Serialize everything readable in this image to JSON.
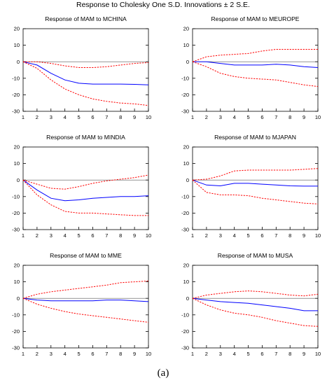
{
  "figure": {
    "title": "Response to Cholesky One S.D. Innovations ± 2 S.E.",
    "caption": "(a)",
    "colors": {
      "response": "#0000ff",
      "band": "#ff0000",
      "zero": "#555555"
    }
  },
  "chart_data": [
    {
      "type": "line",
      "title": "Response of MAM to MCHINA",
      "x": [
        1,
        2,
        3,
        4,
        5,
        6,
        7,
        8,
        9,
        10
      ],
      "xticks": [
        1,
        2,
        3,
        4,
        5,
        6,
        7,
        8,
        9,
        10
      ],
      "yticks": [
        20,
        10,
        0,
        -10,
        -20,
        -30
      ],
      "ylim": [
        -30,
        20
      ],
      "series": [
        {
          "role": "response",
          "values": [
            0,
            -2,
            -7,
            -11,
            -13,
            -13.5,
            -13.5,
            -13.5,
            -13.7,
            -14
          ]
        },
        {
          "role": "upper",
          "values": [
            0,
            0,
            -1,
            -2.5,
            -3.5,
            -3.5,
            -3,
            -2,
            -1,
            -0.5
          ]
        },
        {
          "role": "lower",
          "values": [
            0,
            -4,
            -11,
            -16.5,
            -20,
            -22.5,
            -24,
            -25,
            -25.5,
            -26.5
          ]
        }
      ]
    },
    {
      "type": "line",
      "title": "Response of MAM to MEUROPE",
      "x": [
        1,
        2,
        3,
        4,
        5,
        6,
        7,
        8,
        9,
        10
      ],
      "xticks": [
        1,
        2,
        3,
        4,
        5,
        6,
        7,
        8,
        9,
        10
      ],
      "yticks": [
        20,
        10,
        0,
        -10,
        -20,
        -30
      ],
      "ylim": [
        -30,
        20
      ],
      "series": [
        {
          "role": "response",
          "values": [
            0,
            0,
            -1,
            -2,
            -2,
            -2,
            -1.5,
            -2,
            -3,
            -3.5
          ]
        },
        {
          "role": "upper",
          "values": [
            0,
            3,
            4,
            4.5,
            5,
            6.5,
            7.5,
            7.5,
            7.5,
            7.5
          ]
        },
        {
          "role": "lower",
          "values": [
            0,
            -3,
            -7,
            -9,
            -10,
            -10.5,
            -11,
            -12.5,
            -14,
            -15
          ]
        }
      ]
    },
    {
      "type": "line",
      "title": "Response of MAM to MINDIA",
      "x": [
        1,
        2,
        3,
        4,
        5,
        6,
        7,
        8,
        9,
        10
      ],
      "xticks": [
        1,
        2,
        3,
        4,
        5,
        6,
        7,
        8,
        9,
        10
      ],
      "yticks": [
        20,
        10,
        0,
        -10,
        -20,
        -30
      ],
      "ylim": [
        -30,
        20
      ],
      "series": [
        {
          "role": "response",
          "values": [
            0,
            -6,
            -11,
            -12.5,
            -12,
            -11,
            -10.5,
            -10,
            -10,
            -9.5
          ]
        },
        {
          "role": "upper",
          "values": [
            0,
            -2.5,
            -5,
            -5.5,
            -4,
            -2,
            -0.5,
            0.5,
            1.5,
            3
          ]
        },
        {
          "role": "lower",
          "values": [
            0,
            -9,
            -15,
            -19,
            -20,
            -20,
            -20.5,
            -21,
            -21.5,
            -21.5
          ]
        }
      ]
    },
    {
      "type": "line",
      "title": "Response of MAM to MJAPAN",
      "x": [
        1,
        2,
        3,
        4,
        5,
        6,
        7,
        8,
        9,
        10
      ],
      "xticks": [
        1,
        2,
        3,
        4,
        5,
        6,
        7,
        8,
        9,
        10
      ],
      "yticks": [
        20,
        10,
        0,
        -10,
        -20,
        -30
      ],
      "ylim": [
        -30,
        20
      ],
      "series": [
        {
          "role": "response",
          "values": [
            0,
            -3,
            -3.5,
            -2,
            -2,
            -2.5,
            -3,
            -3.5,
            -3.7,
            -3.7
          ]
        },
        {
          "role": "upper",
          "values": [
            0,
            0.5,
            2.5,
            5.5,
            6,
            6,
            6,
            6,
            6.5,
            7
          ]
        },
        {
          "role": "lower",
          "values": [
            0,
            -7.5,
            -9,
            -9,
            -9.5,
            -11,
            -12,
            -13,
            -14,
            -14.5
          ]
        }
      ]
    },
    {
      "type": "line",
      "title": "Response of MAM to MME",
      "x": [
        1,
        2,
        3,
        4,
        5,
        6,
        7,
        8,
        9,
        10
      ],
      "xticks": [
        1,
        2,
        3,
        4,
        5,
        6,
        7,
        8,
        9,
        10
      ],
      "yticks": [
        20,
        10,
        0,
        -10,
        -20,
        -30
      ],
      "ylim": [
        -30,
        20
      ],
      "series": [
        {
          "role": "response",
          "values": [
            0,
            -1,
            -1.5,
            -1.5,
            -1.5,
            -1.5,
            -1,
            -1,
            -1.5,
            -2
          ]
        },
        {
          "role": "upper",
          "values": [
            0,
            2.5,
            4,
            5,
            6,
            7,
            8,
            9.5,
            10,
            10.5
          ]
        },
        {
          "role": "lower",
          "values": [
            0,
            -3.5,
            -6,
            -8,
            -9.5,
            -10.5,
            -11.5,
            -12.5,
            -13.5,
            -14.5
          ]
        }
      ]
    },
    {
      "type": "line",
      "title": "Response of MAM to MUSA",
      "x": [
        1,
        2,
        3,
        4,
        5,
        6,
        7,
        8,
        9,
        10
      ],
      "xticks": [
        1,
        2,
        3,
        4,
        5,
        6,
        7,
        8,
        9,
        10
      ],
      "yticks": [
        20,
        10,
        0,
        -10,
        -20,
        -30
      ],
      "ylim": [
        -30,
        20
      ],
      "series": [
        {
          "role": "response",
          "values": [
            0,
            -1,
            -2,
            -2.5,
            -3,
            -4,
            -5,
            -6,
            -7.5,
            -7.5
          ]
        },
        {
          "role": "upper",
          "values": [
            0,
            2,
            3,
            4,
            4.5,
            4,
            3,
            2,
            1.5,
            2.5
          ]
        },
        {
          "role": "lower",
          "values": [
            0,
            -4,
            -7,
            -9,
            -10,
            -11.5,
            -13.5,
            -15,
            -16.5,
            -17
          ]
        }
      ]
    }
  ]
}
